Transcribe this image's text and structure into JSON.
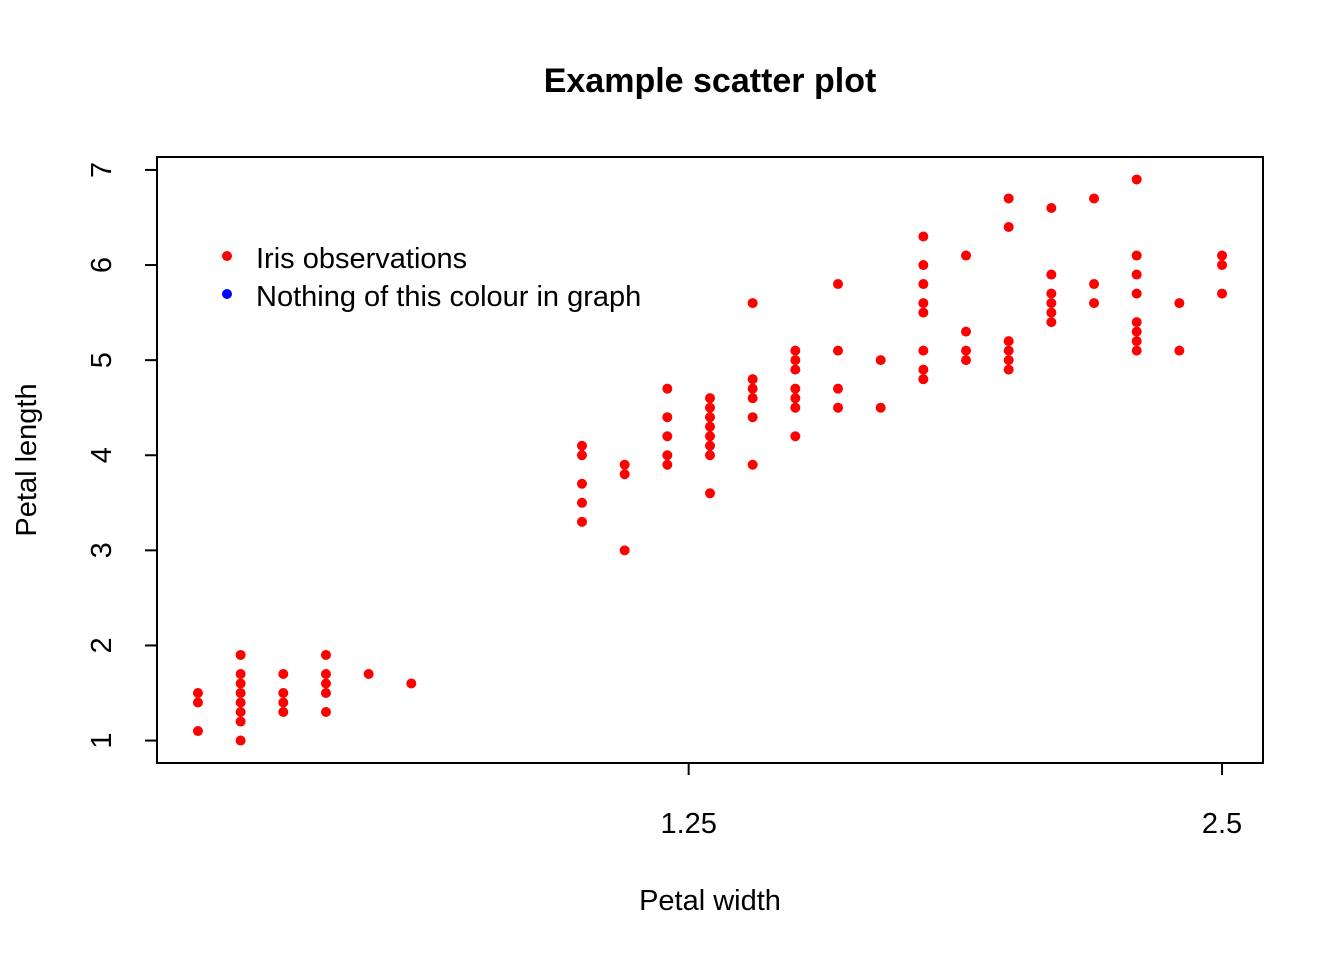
{
  "chart_data": {
    "type": "scatter",
    "title": "Example scatter plot",
    "xlabel": "Petal width",
    "ylabel": "Petal length",
    "xticks": [
      1.25,
      2.5
    ],
    "xtick_labels": [
      "1.25",
      "2.5"
    ],
    "yticks": [
      1,
      2,
      3,
      4,
      5,
      6,
      7
    ],
    "ytick_labels": [
      "1",
      "2",
      "3",
      "4",
      "5",
      "6",
      "7"
    ],
    "xlim": [
      0.004,
      2.596
    ],
    "ylim": [
      0.764,
      7.136
    ],
    "grid": false,
    "legend": {
      "position": "top-left",
      "entries": [
        {
          "label": "Iris observations",
          "color": "#ff0000"
        },
        {
          "label": "Nothing of this colour in graph",
          "color": "#0000ff"
        }
      ]
    },
    "series": [
      {
        "color": "#ff0000",
        "points": [
          [
            0.1,
            1.1
          ],
          [
            0.1,
            1.4
          ],
          [
            0.1,
            1.5
          ],
          [
            0.2,
            1.0
          ],
          [
            0.2,
            1.2
          ],
          [
            0.2,
            1.3
          ],
          [
            0.2,
            1.4
          ],
          [
            0.2,
            1.5
          ],
          [
            0.2,
            1.6
          ],
          [
            0.2,
            1.7
          ],
          [
            0.2,
            1.9
          ],
          [
            0.3,
            1.3
          ],
          [
            0.3,
            1.4
          ],
          [
            0.3,
            1.5
          ],
          [
            0.3,
            1.7
          ],
          [
            0.4,
            1.3
          ],
          [
            0.4,
            1.5
          ],
          [
            0.4,
            1.6
          ],
          [
            0.4,
            1.7
          ],
          [
            0.4,
            1.9
          ],
          [
            0.5,
            1.7
          ],
          [
            0.6,
            1.6
          ],
          [
            1.0,
            3.3
          ],
          [
            1.0,
            3.5
          ],
          [
            1.0,
            3.7
          ],
          [
            1.0,
            4.0
          ],
          [
            1.0,
            4.1
          ],
          [
            1.1,
            3.0
          ],
          [
            1.1,
            3.8
          ],
          [
            1.1,
            3.9
          ],
          [
            1.2,
            3.9
          ],
          [
            1.2,
            4.0
          ],
          [
            1.2,
            4.2
          ],
          [
            1.2,
            4.4
          ],
          [
            1.2,
            4.7
          ],
          [
            1.3,
            3.6
          ],
          [
            1.3,
            4.0
          ],
          [
            1.3,
            4.1
          ],
          [
            1.3,
            4.2
          ],
          [
            1.3,
            4.3
          ],
          [
            1.3,
            4.4
          ],
          [
            1.3,
            4.5
          ],
          [
            1.3,
            4.6
          ],
          [
            1.4,
            3.9
          ],
          [
            1.4,
            4.4
          ],
          [
            1.4,
            4.6
          ],
          [
            1.4,
            4.7
          ],
          [
            1.4,
            4.8
          ],
          [
            1.4,
            5.6
          ],
          [
            1.5,
            4.2
          ],
          [
            1.5,
            4.5
          ],
          [
            1.5,
            4.6
          ],
          [
            1.5,
            4.7
          ],
          [
            1.5,
            4.9
          ],
          [
            1.5,
            5.0
          ],
          [
            1.5,
            5.1
          ],
          [
            1.6,
            4.5
          ],
          [
            1.6,
            4.7
          ],
          [
            1.6,
            5.1
          ],
          [
            1.6,
            5.8
          ],
          [
            1.7,
            4.5
          ],
          [
            1.7,
            5.0
          ],
          [
            1.8,
            4.8
          ],
          [
            1.8,
            4.9
          ],
          [
            1.8,
            5.1
          ],
          [
            1.8,
            5.5
          ],
          [
            1.8,
            5.6
          ],
          [
            1.8,
            5.8
          ],
          [
            1.8,
            6.0
          ],
          [
            1.8,
            6.3
          ],
          [
            1.9,
            5.0
          ],
          [
            1.9,
            5.1
          ],
          [
            1.9,
            5.3
          ],
          [
            1.9,
            6.1
          ],
          [
            2.0,
            4.9
          ],
          [
            2.0,
            5.0
          ],
          [
            2.0,
            5.1
          ],
          [
            2.0,
            5.2
          ],
          [
            2.0,
            6.4
          ],
          [
            2.0,
            6.7
          ],
          [
            2.1,
            5.4
          ],
          [
            2.1,
            5.5
          ],
          [
            2.1,
            5.6
          ],
          [
            2.1,
            5.7
          ],
          [
            2.1,
            5.9
          ],
          [
            2.1,
            6.6
          ],
          [
            2.2,
            5.6
          ],
          [
            2.2,
            5.8
          ],
          [
            2.2,
            6.7
          ],
          [
            2.3,
            5.1
          ],
          [
            2.3,
            5.2
          ],
          [
            2.3,
            5.3
          ],
          [
            2.3,
            5.4
          ],
          [
            2.3,
            5.7
          ],
          [
            2.3,
            5.9
          ],
          [
            2.3,
            6.1
          ],
          [
            2.3,
            6.9
          ],
          [
            2.4,
            5.1
          ],
          [
            2.4,
            5.6
          ],
          [
            2.5,
            5.7
          ],
          [
            2.5,
            6.0
          ],
          [
            2.5,
            6.1
          ]
        ]
      }
    ]
  }
}
